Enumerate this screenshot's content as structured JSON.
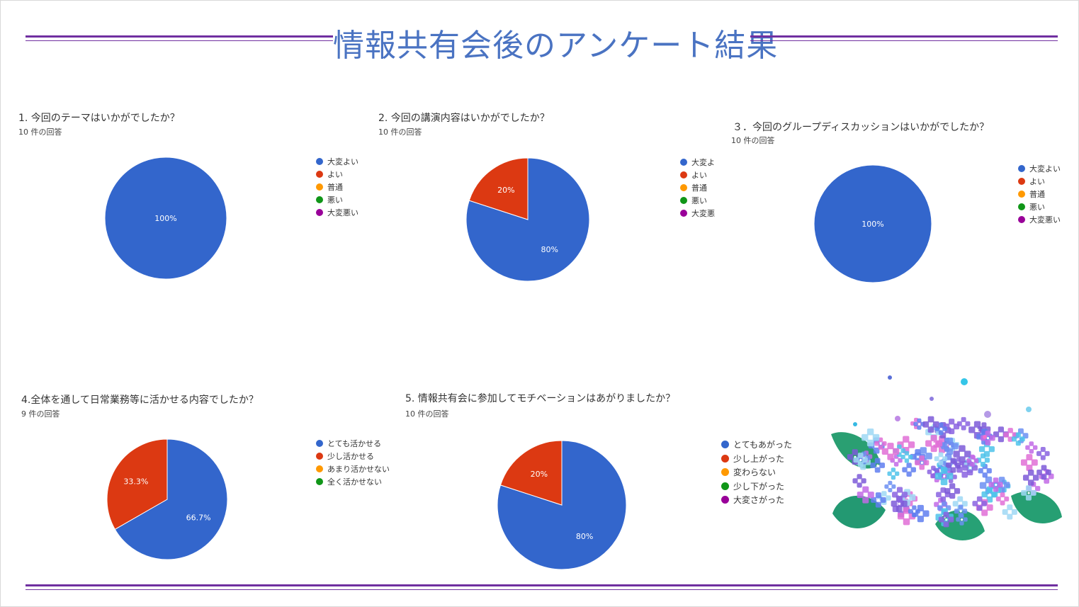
{
  "page": {
    "title": "情報共有会後のアンケート結果"
  },
  "colors": {
    "blue": "#3366cc",
    "red": "#dc3912",
    "orange": "#ff9900",
    "green": "#109618",
    "purple": "#990099",
    "rule": "#7030a0",
    "title": "#4a73c2"
  },
  "surveys": [
    {
      "question": "1.  今回のテーマはいかがでしたか？",
      "responses": "10 件の回答",
      "legend": [
        "大変よい",
        "よい",
        "普通",
        "悪い",
        "大変悪い"
      ]
    },
    {
      "question": "2.  今回の講演内容はいかがでしたか？",
      "responses": "10 件の回答",
      "legend": [
        "大変よ",
        "よい",
        "普通",
        "悪い",
        "大変悪"
      ]
    },
    {
      "question": "３．今回のグループディスカッションはいかがでしたか？",
      "responses": "10 件の回答",
      "legend": [
        "大変よい",
        "よい",
        "普通",
        "悪い",
        "大変悪い"
      ]
    },
    {
      "question": "4.全体を通して日常業務等に活かせる内容でしたか？",
      "responses": "9 件の回答",
      "legend": [
        "とても活かせる",
        "少し活かせる",
        "あまり活かせない",
        "全く活かせない"
      ]
    },
    {
      "question": "5.  情報共有会に参加してモチベーションはあがりましたか？",
      "responses": "10 件の回答",
      "legend": [
        "とてもあがった",
        "少し上がった",
        "変わらない",
        "少し下がった",
        "大変さがった"
      ]
    }
  ],
  "chart_data": [
    {
      "type": "pie",
      "title": "1.  今回のテーマはいかがでしたか？",
      "categories": [
        "大変よい",
        "よい",
        "普通",
        "悪い",
        "大変悪い"
      ],
      "values": [
        100,
        0,
        0,
        0,
        0
      ],
      "labels": [
        "100%",
        "",
        "",
        "",
        ""
      ],
      "legend_position": "right"
    },
    {
      "type": "pie",
      "title": "2.  今回の講演内容はいかがでしたか？",
      "categories": [
        "大変よ",
        "よい",
        "普通",
        "悪い",
        "大変悪"
      ],
      "values": [
        80,
        20,
        0,
        0,
        0
      ],
      "labels": [
        "80%",
        "20%",
        "",
        "",
        ""
      ],
      "legend_position": "right"
    },
    {
      "type": "pie",
      "title": "３．今回のグループディスカッションはいかがでしたか？",
      "categories": [
        "大変よい",
        "よい",
        "普通",
        "悪い",
        "大変悪い"
      ],
      "values": [
        100,
        0,
        0,
        0,
        0
      ],
      "labels": [
        "100%",
        "",
        "",
        "",
        ""
      ],
      "legend_position": "right"
    },
    {
      "type": "pie",
      "title": "4.全体を通して日常業務等に活かせる内容でしたか？",
      "categories": [
        "とても活かせる",
        "少し活かせる",
        "あまり活かせない",
        "全く活かせない"
      ],
      "values": [
        66.7,
        33.3,
        0,
        0
      ],
      "labels": [
        "66.7%",
        "33.3%",
        "",
        ""
      ],
      "legend_position": "right"
    },
    {
      "type": "pie",
      "title": "5.  情報共有会に参加してモチベーションはあがりましたか？",
      "categories": [
        "とてもあがった",
        "少し上がった",
        "変わらない",
        "少し下がった",
        "大変さがった"
      ],
      "values": [
        80,
        20,
        0,
        0,
        0
      ],
      "labels": [
        "80%",
        "20%",
        "",
        "",
        ""
      ],
      "legend_position": "right"
    }
  ]
}
